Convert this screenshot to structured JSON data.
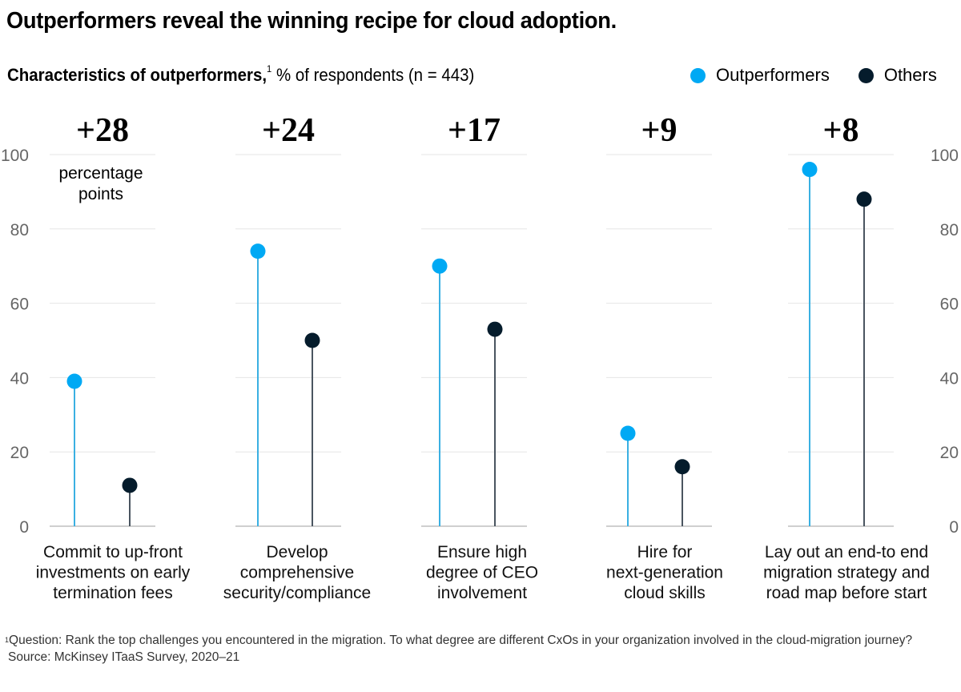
{
  "title": "Outperformers reveal the winning recipe for cloud adoption.",
  "subtitle": {
    "bold": "Characteristics of outperformers,",
    "footnote_mark": "1",
    "rest": " % of respondents (n = 443)"
  },
  "colors": {
    "outperformers": "#00a9f4",
    "outperformers_stem": "#3ab0e2",
    "others": "#051c2c",
    "others_stem": "#4a5560",
    "grid": "#e6e6e6",
    "axis": "#bfbfbf",
    "tick_text": "#666666"
  },
  "footnote": {
    "mark": "1",
    "question": "Question: Rank the top challenges you encountered in the migration. To what degree are different CxOs in your organization involved in the cloud-migration journey?",
    "source": "Source: McKinsey ITaaS Survey, 2020–21"
  },
  "chart_data": {
    "type": "lollipop",
    "title": "Characteristics of outperformers, % of respondents (n = 443)",
    "xlabel": "",
    "ylabel": "% of respondents",
    "ylim": [
      0,
      100
    ],
    "yticks": [
      0,
      20,
      40,
      60,
      80,
      100
    ],
    "grid": true,
    "legend_position": "top-right",
    "legend": [
      "Outperformers",
      "Others"
    ],
    "categories": [
      [
        "Commit to up-front",
        "investments on early",
        "termination fees"
      ],
      [
        "Develop",
        "comprehensive",
        "security/compliance"
      ],
      [
        "Ensure high",
        "degree of CEO",
        "involvement"
      ],
      [
        "Hire for",
        "next-generation",
        "cloud skills"
      ],
      [
        "Lay out an end-to end",
        "migration strategy and",
        "road map before start"
      ]
    ],
    "series": [
      {
        "name": "Outperformers",
        "values": [
          39,
          74,
          70,
          25,
          96
        ]
      },
      {
        "name": "Others",
        "values": [
          11,
          50,
          53,
          16,
          88
        ]
      }
    ],
    "annotations": [
      "+28",
      "+24",
      "+17",
      "+9",
      "+8"
    ],
    "annotation_unit": [
      "percentage",
      "points"
    ]
  }
}
